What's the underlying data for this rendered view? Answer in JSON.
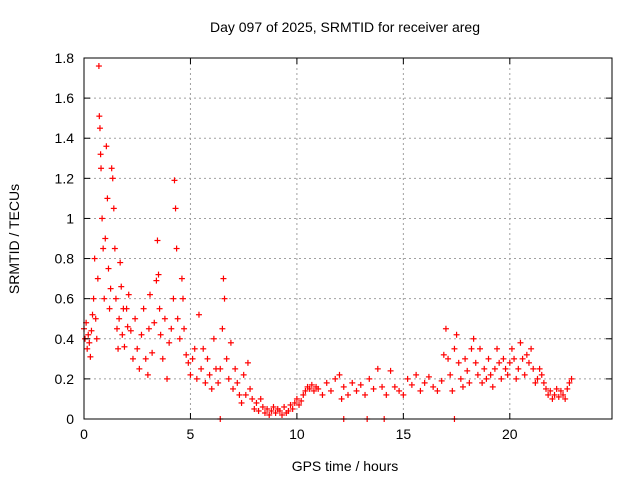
{
  "chart_data": {
    "type": "scatter",
    "title": "Day 097 of 2025, SRMTID for receiver areg",
    "xlabel": "GPS time / hours",
    "ylabel": "SRMTID / TECUs",
    "xlim": [
      0,
      24.8
    ],
    "ylim": [
      0,
      1.8
    ],
    "x_ticks": [
      0,
      5,
      10,
      15,
      20
    ],
    "y_ticks": [
      0,
      0.2,
      0.4,
      0.6,
      0.8,
      1,
      1.2,
      1.4,
      1.6,
      1.8
    ],
    "grid": true,
    "marker": "+",
    "series": [
      {
        "name": "SRMTID",
        "color": "#ff0000",
        "points": [
          [
            0.0,
            0.45
          ],
          [
            0.05,
            0.4
          ],
          [
            0.1,
            0.48
          ],
          [
            0.15,
            0.35
          ],
          [
            0.2,
            0.42
          ],
          [
            0.25,
            0.38
          ],
          [
            0.3,
            0.31
          ],
          [
            0.35,
            0.44
          ],
          [
            0.4,
            0.52
          ],
          [
            0.45,
            0.6
          ],
          [
            0.5,
            0.8
          ],
          [
            0.55,
            0.5
          ],
          [
            0.6,
            0.4
          ],
          [
            0.65,
            0.7
          ],
          [
            0.7,
            1.76
          ],
          [
            0.72,
            1.51
          ],
          [
            0.75,
            1.45
          ],
          [
            0.78,
            1.32
          ],
          [
            0.8,
            1.25
          ],
          [
            0.85,
            1.0
          ],
          [
            0.9,
            0.85
          ],
          [
            0.95,
            0.6
          ],
          [
            1.0,
            0.9
          ],
          [
            1.05,
            1.36
          ],
          [
            1.1,
            1.1
          ],
          [
            1.15,
            0.75
          ],
          [
            1.2,
            0.55
          ],
          [
            1.25,
            0.65
          ],
          [
            1.3,
            1.25
          ],
          [
            1.35,
            1.2
          ],
          [
            1.4,
            1.05
          ],
          [
            1.45,
            0.85
          ],
          [
            1.5,
            0.6
          ],
          [
            1.55,
            0.45
          ],
          [
            1.6,
            0.35
          ],
          [
            1.65,
            0.5
          ],
          [
            1.7,
            0.78
          ],
          [
            1.75,
            0.66
          ],
          [
            1.8,
            0.42
          ],
          [
            1.85,
            0.55
          ],
          [
            1.9,
            0.36
          ],
          [
            2.0,
            0.55
          ],
          [
            2.05,
            0.46
          ],
          [
            2.1,
            0.62
          ],
          [
            2.2,
            0.44
          ],
          [
            2.3,
            0.3
          ],
          [
            2.4,
            0.5
          ],
          [
            2.5,
            0.35
          ],
          [
            2.6,
            0.25
          ],
          [
            2.7,
            0.42
          ],
          [
            2.8,
            0.55
          ],
          [
            2.9,
            0.3
          ],
          [
            3.0,
            0.22
          ],
          [
            3.05,
            0.45
          ],
          [
            3.1,
            0.62
          ],
          [
            3.2,
            0.33
          ],
          [
            3.3,
            0.48
          ],
          [
            3.4,
            0.69
          ],
          [
            3.45,
            0.89
          ],
          [
            3.5,
            0.72
          ],
          [
            3.55,
            0.55
          ],
          [
            3.6,
            0.42
          ],
          [
            3.7,
            0.3
          ],
          [
            3.8,
            0.5
          ],
          [
            3.9,
            0.2
          ],
          [
            4.0,
            0.38
          ],
          [
            4.1,
            0.45
          ],
          [
            4.2,
            0.6
          ],
          [
            4.25,
            1.19
          ],
          [
            4.3,
            1.05
          ],
          [
            4.35,
            0.85
          ],
          [
            4.4,
            0.5
          ],
          [
            4.5,
            0.4
          ],
          [
            4.6,
            0.7
          ],
          [
            4.65,
            0.6
          ],
          [
            4.7,
            0.45
          ],
          [
            4.8,
            0.32
          ],
          [
            4.9,
            0.28
          ],
          [
            5.0,
            0.22
          ],
          [
            5.1,
            0.3
          ],
          [
            5.2,
            0.35
          ],
          [
            5.3,
            0.2
          ],
          [
            5.4,
            0.52
          ],
          [
            5.5,
            0.25
          ],
          [
            5.6,
            0.35
          ],
          [
            5.7,
            0.18
          ],
          [
            5.8,
            0.3
          ],
          [
            5.9,
            0.22
          ],
          [
            6.0,
            0.15
          ],
          [
            6.1,
            0.4
          ],
          [
            6.2,
            0.25
          ],
          [
            6.3,
            0.18
          ],
          [
            6.4,
            0.25
          ],
          [
            6.5,
            0.45
          ],
          [
            6.55,
            0.7
          ],
          [
            6.6,
            0.6
          ],
          [
            6.7,
            0.3
          ],
          [
            6.8,
            0.2
          ],
          [
            6.9,
            0.38
          ],
          [
            7.0,
            0.15
          ],
          [
            7.1,
            0.25
          ],
          [
            7.2,
            0.18
          ],
          [
            7.3,
            0.12
          ],
          [
            7.4,
            0.08
          ],
          [
            7.5,
            0.22
          ],
          [
            7.6,
            0.12
          ],
          [
            7.7,
            0.28
          ],
          [
            7.8,
            0.15
          ],
          [
            7.9,
            0.1
          ],
          [
            8.0,
            0.05
          ],
          [
            8.1,
            0.08
          ],
          [
            8.2,
            0.04
          ],
          [
            8.3,
            0.1
          ],
          [
            8.4,
            0.06
          ],
          [
            8.5,
            0.03
          ],
          [
            8.6,
            0.05
          ],
          [
            8.7,
            0.02
          ],
          [
            8.8,
            0.04
          ],
          [
            8.9,
            0.06
          ],
          [
            9.0,
            0.03
          ],
          [
            9.1,
            0.05
          ],
          [
            9.2,
            0.04
          ],
          [
            9.3,
            0.02
          ],
          [
            9.4,
            0.06
          ],
          [
            9.5,
            0.03
          ],
          [
            9.6,
            0.04
          ],
          [
            9.7,
            0.07
          ],
          [
            9.8,
            0.05
          ],
          [
            9.9,
            0.08
          ],
          [
            10.0,
            0.1
          ],
          [
            10.1,
            0.07
          ],
          [
            10.2,
            0.09
          ],
          [
            10.3,
            0.12
          ],
          [
            10.4,
            0.14
          ],
          [
            10.5,
            0.16
          ],
          [
            10.6,
            0.15
          ],
          [
            10.7,
            0.17
          ],
          [
            10.8,
            0.14
          ],
          [
            10.9,
            0.16
          ],
          [
            11.0,
            0.15
          ],
          [
            11.2,
            0.12
          ],
          [
            11.4,
            0.18
          ],
          [
            11.6,
            0.14
          ],
          [
            11.8,
            0.2
          ],
          [
            12.0,
            0.22
          ],
          [
            12.1,
            0.1
          ],
          [
            12.2,
            0.16
          ],
          [
            12.4,
            0.12
          ],
          [
            12.6,
            0.18
          ],
          [
            12.8,
            0.14
          ],
          [
            13.0,
            0.17
          ],
          [
            13.2,
            0.12
          ],
          [
            13.4,
            0.2
          ],
          [
            13.6,
            0.15
          ],
          [
            13.8,
            0.25
          ],
          [
            14.0,
            0.16
          ],
          [
            14.2,
            0.12
          ],
          [
            14.4,
            0.24
          ],
          [
            14.6,
            0.16
          ],
          [
            14.8,
            0.14
          ],
          [
            15.0,
            0.12
          ],
          [
            15.2,
            0.2
          ],
          [
            15.4,
            0.17
          ],
          [
            15.6,
            0.22
          ],
          [
            15.8,
            0.14
          ],
          [
            16.0,
            0.18
          ],
          [
            16.2,
            0.21
          ],
          [
            16.4,
            0.16
          ],
          [
            16.6,
            0.14
          ],
          [
            16.8,
            0.19
          ],
          [
            16.9,
            0.32
          ],
          [
            17.0,
            0.45
          ],
          [
            17.1,
            0.3
          ],
          [
            17.2,
            0.22
          ],
          [
            17.3,
            0.14
          ],
          [
            17.4,
            0.35
          ],
          [
            17.5,
            0.42
          ],
          [
            17.6,
            0.28
          ],
          [
            17.7,
            0.2
          ],
          [
            17.8,
            0.16
          ],
          [
            17.9,
            0.3
          ],
          [
            18.0,
            0.24
          ],
          [
            18.1,
            0.18
          ],
          [
            18.2,
            0.35
          ],
          [
            18.3,
            0.4
          ],
          [
            18.4,
            0.28
          ],
          [
            18.5,
            0.22
          ],
          [
            18.6,
            0.35
          ],
          [
            18.7,
            0.18
          ],
          [
            18.8,
            0.25
          ],
          [
            18.9,
            0.2
          ],
          [
            19.0,
            0.3
          ],
          [
            19.1,
            0.22
          ],
          [
            19.2,
            0.16
          ],
          [
            19.3,
            0.25
          ],
          [
            19.4,
            0.35
          ],
          [
            19.5,
            0.28
          ],
          [
            19.6,
            0.2
          ],
          [
            19.7,
            0.3
          ],
          [
            19.8,
            0.25
          ],
          [
            19.9,
            0.22
          ],
          [
            20.0,
            0.28
          ],
          [
            20.1,
            0.35
          ],
          [
            20.2,
            0.3
          ],
          [
            20.3,
            0.2
          ],
          [
            20.4,
            0.25
          ],
          [
            20.5,
            0.38
          ],
          [
            20.6,
            0.3
          ],
          [
            20.7,
            0.22
          ],
          [
            20.8,
            0.32
          ],
          [
            20.9,
            0.28
          ],
          [
            21.0,
            0.35
          ],
          [
            21.1,
            0.25
          ],
          [
            21.2,
            0.18
          ],
          [
            21.3,
            0.2
          ],
          [
            21.4,
            0.25
          ],
          [
            21.5,
            0.22
          ],
          [
            21.6,
            0.18
          ],
          [
            21.7,
            0.15
          ],
          [
            21.8,
            0.12
          ],
          [
            21.9,
            0.14
          ],
          [
            22.0,
            0.1
          ],
          [
            22.1,
            0.12
          ],
          [
            22.2,
            0.15
          ],
          [
            22.3,
            0.11
          ],
          [
            22.4,
            0.14
          ],
          [
            22.5,
            0.12
          ],
          [
            22.6,
            0.1
          ],
          [
            22.7,
            0.15
          ],
          [
            22.8,
            0.18
          ],
          [
            22.9,
            0.2
          ],
          [
            6.4,
            0.0
          ],
          [
            12.2,
            0.0
          ],
          [
            13.3,
            0.0
          ],
          [
            14.1,
            0.0
          ],
          [
            17.4,
            0.0
          ]
        ]
      }
    ]
  }
}
